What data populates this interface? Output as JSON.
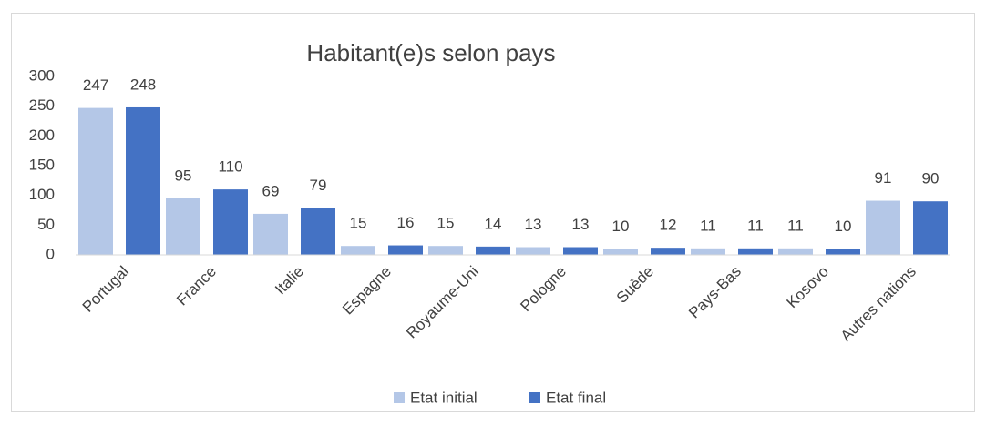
{
  "chart_data": {
    "type": "bar",
    "title": "Habitant(e)s selon pays",
    "categories": [
      "Portugal",
      "France",
      "Italie",
      "Espagne",
      "Royaume-Uni",
      "Pologne",
      "Suède",
      "Pays-Bas",
      "Kosovo",
      "Autres nations"
    ],
    "series": [
      {
        "name": "Etat initial",
        "color": "#b4c7e7",
        "values": [
          247,
          95,
          69,
          15,
          15,
          13,
          10,
          11,
          11,
          91
        ]
      },
      {
        "name": "Etat final",
        "color": "#4472c4",
        "values": [
          248,
          110,
          79,
          16,
          14,
          13,
          12,
          11,
          10,
          90
        ]
      }
    ],
    "ylim": [
      0,
      300
    ],
    "yticks": [
      0,
      50,
      100,
      150,
      200,
      250,
      300
    ],
    "grid": false,
    "legend": "bottom"
  }
}
